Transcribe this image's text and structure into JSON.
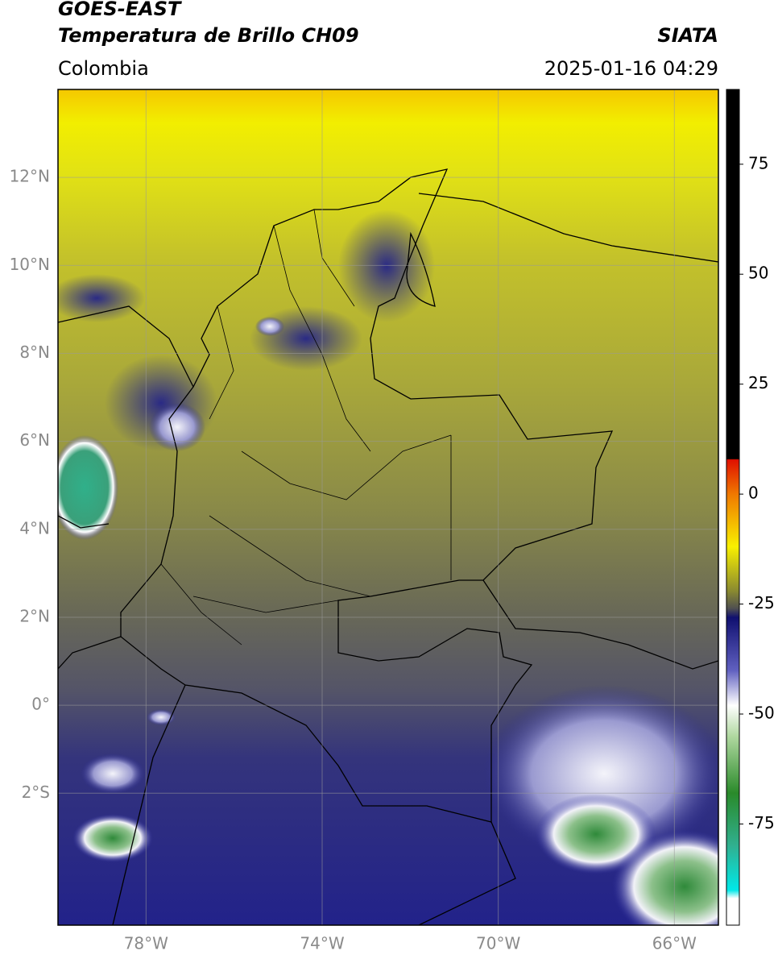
{
  "header": {
    "title": "GOES-EAST",
    "subtitle": "Temperatura de Brillo CH09",
    "source": "SIATA",
    "region": "Colombia",
    "datetime": "2025-01-16 04:29"
  },
  "map": {
    "xlim": [
      -80,
      -65
    ],
    "ylim": [
      -5,
      14
    ],
    "lon_ticks": [
      {
        "value": -78,
        "label": "78°W"
      },
      {
        "value": -74,
        "label": "74°W"
      },
      {
        "value": -70,
        "label": "70°W"
      },
      {
        "value": -66,
        "label": "66°W"
      }
    ],
    "lat_ticks": [
      {
        "value": 12,
        "label": "12°N"
      },
      {
        "value": 10,
        "label": "10°N"
      },
      {
        "value": 8,
        "label": "8°N"
      },
      {
        "value": 6,
        "label": "6°N"
      },
      {
        "value": 4,
        "label": "4°N"
      },
      {
        "value": 2,
        "label": "2°N"
      },
      {
        "value": 0,
        "label": "0°"
      },
      {
        "value": -2,
        "label": "2°S"
      }
    ],
    "grid": true
  },
  "colorbar": {
    "lim": [
      -98,
      92
    ],
    "ticks": [
      75,
      50,
      25,
      0,
      -25,
      -50,
      -75
    ]
  }
}
